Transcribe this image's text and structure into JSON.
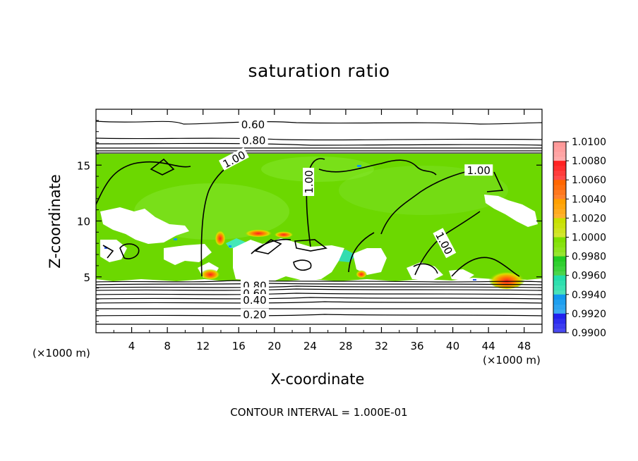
{
  "chart_data": {
    "type": "heatmap",
    "title": "saturation ratio",
    "xlabel": "X-coordinate",
    "ylabel": "Z-coordinate",
    "x_unit": "(×1000 m)",
    "x_unit_right": "(×1000 m)",
    "xlim": [
      0,
      50
    ],
    "ylim": [
      0,
      20
    ],
    "x_ticks": [
      4,
      8,
      12,
      16,
      20,
      24,
      28,
      32,
      36,
      40,
      44,
      48
    ],
    "y_ticks": [
      5,
      10,
      15
    ],
    "colorbar": {
      "labels": [
        "1.0100",
        "1.0080",
        "1.0060",
        "1.0040",
        "1.0020",
        "1.0000",
        "0.9980",
        "0.9960",
        "0.9940",
        "0.9920",
        "0.9900"
      ],
      "colors": [
        "#ff9999",
        "#ff2222",
        "#ff6600",
        "#ffa000",
        "#c8e000",
        "#7fe000",
        "#22cc22",
        "#22ddaa",
        "#1199ee",
        "#2222ee",
        "#6600aa"
      ]
    },
    "contour_labels": [
      {
        "text": "0.60",
        "x": 17.6,
        "z": 18.6
      },
      {
        "text": "0.80",
        "x": 17.7,
        "z": 17.2
      },
      {
        "text": "1.00",
        "x": 15.5,
        "z": 15.5
      },
      {
        "text": "1.00",
        "x": 23.9,
        "z": 13.5
      },
      {
        "text": "1.00",
        "x": 42.9,
        "z": 14.5
      },
      {
        "text": "1.00",
        "x": 39.0,
        "z": 8.0
      },
      {
        "text": "0.80",
        "x": 17.8,
        "z": 4.2
      },
      {
        "text": "0.60",
        "x": 17.8,
        "z": 3.5
      },
      {
        "text": "0.40",
        "x": 17.8,
        "z": 2.9
      },
      {
        "text": "0.20",
        "x": 17.8,
        "z": 1.6
      }
    ],
    "contour_interval_text": "CONTOUR INTERVAL = 1.000E-01",
    "data_region": {
      "z_bottom": 4.6,
      "z_top": 16.0,
      "dominant_value": 1.0
    }
  }
}
